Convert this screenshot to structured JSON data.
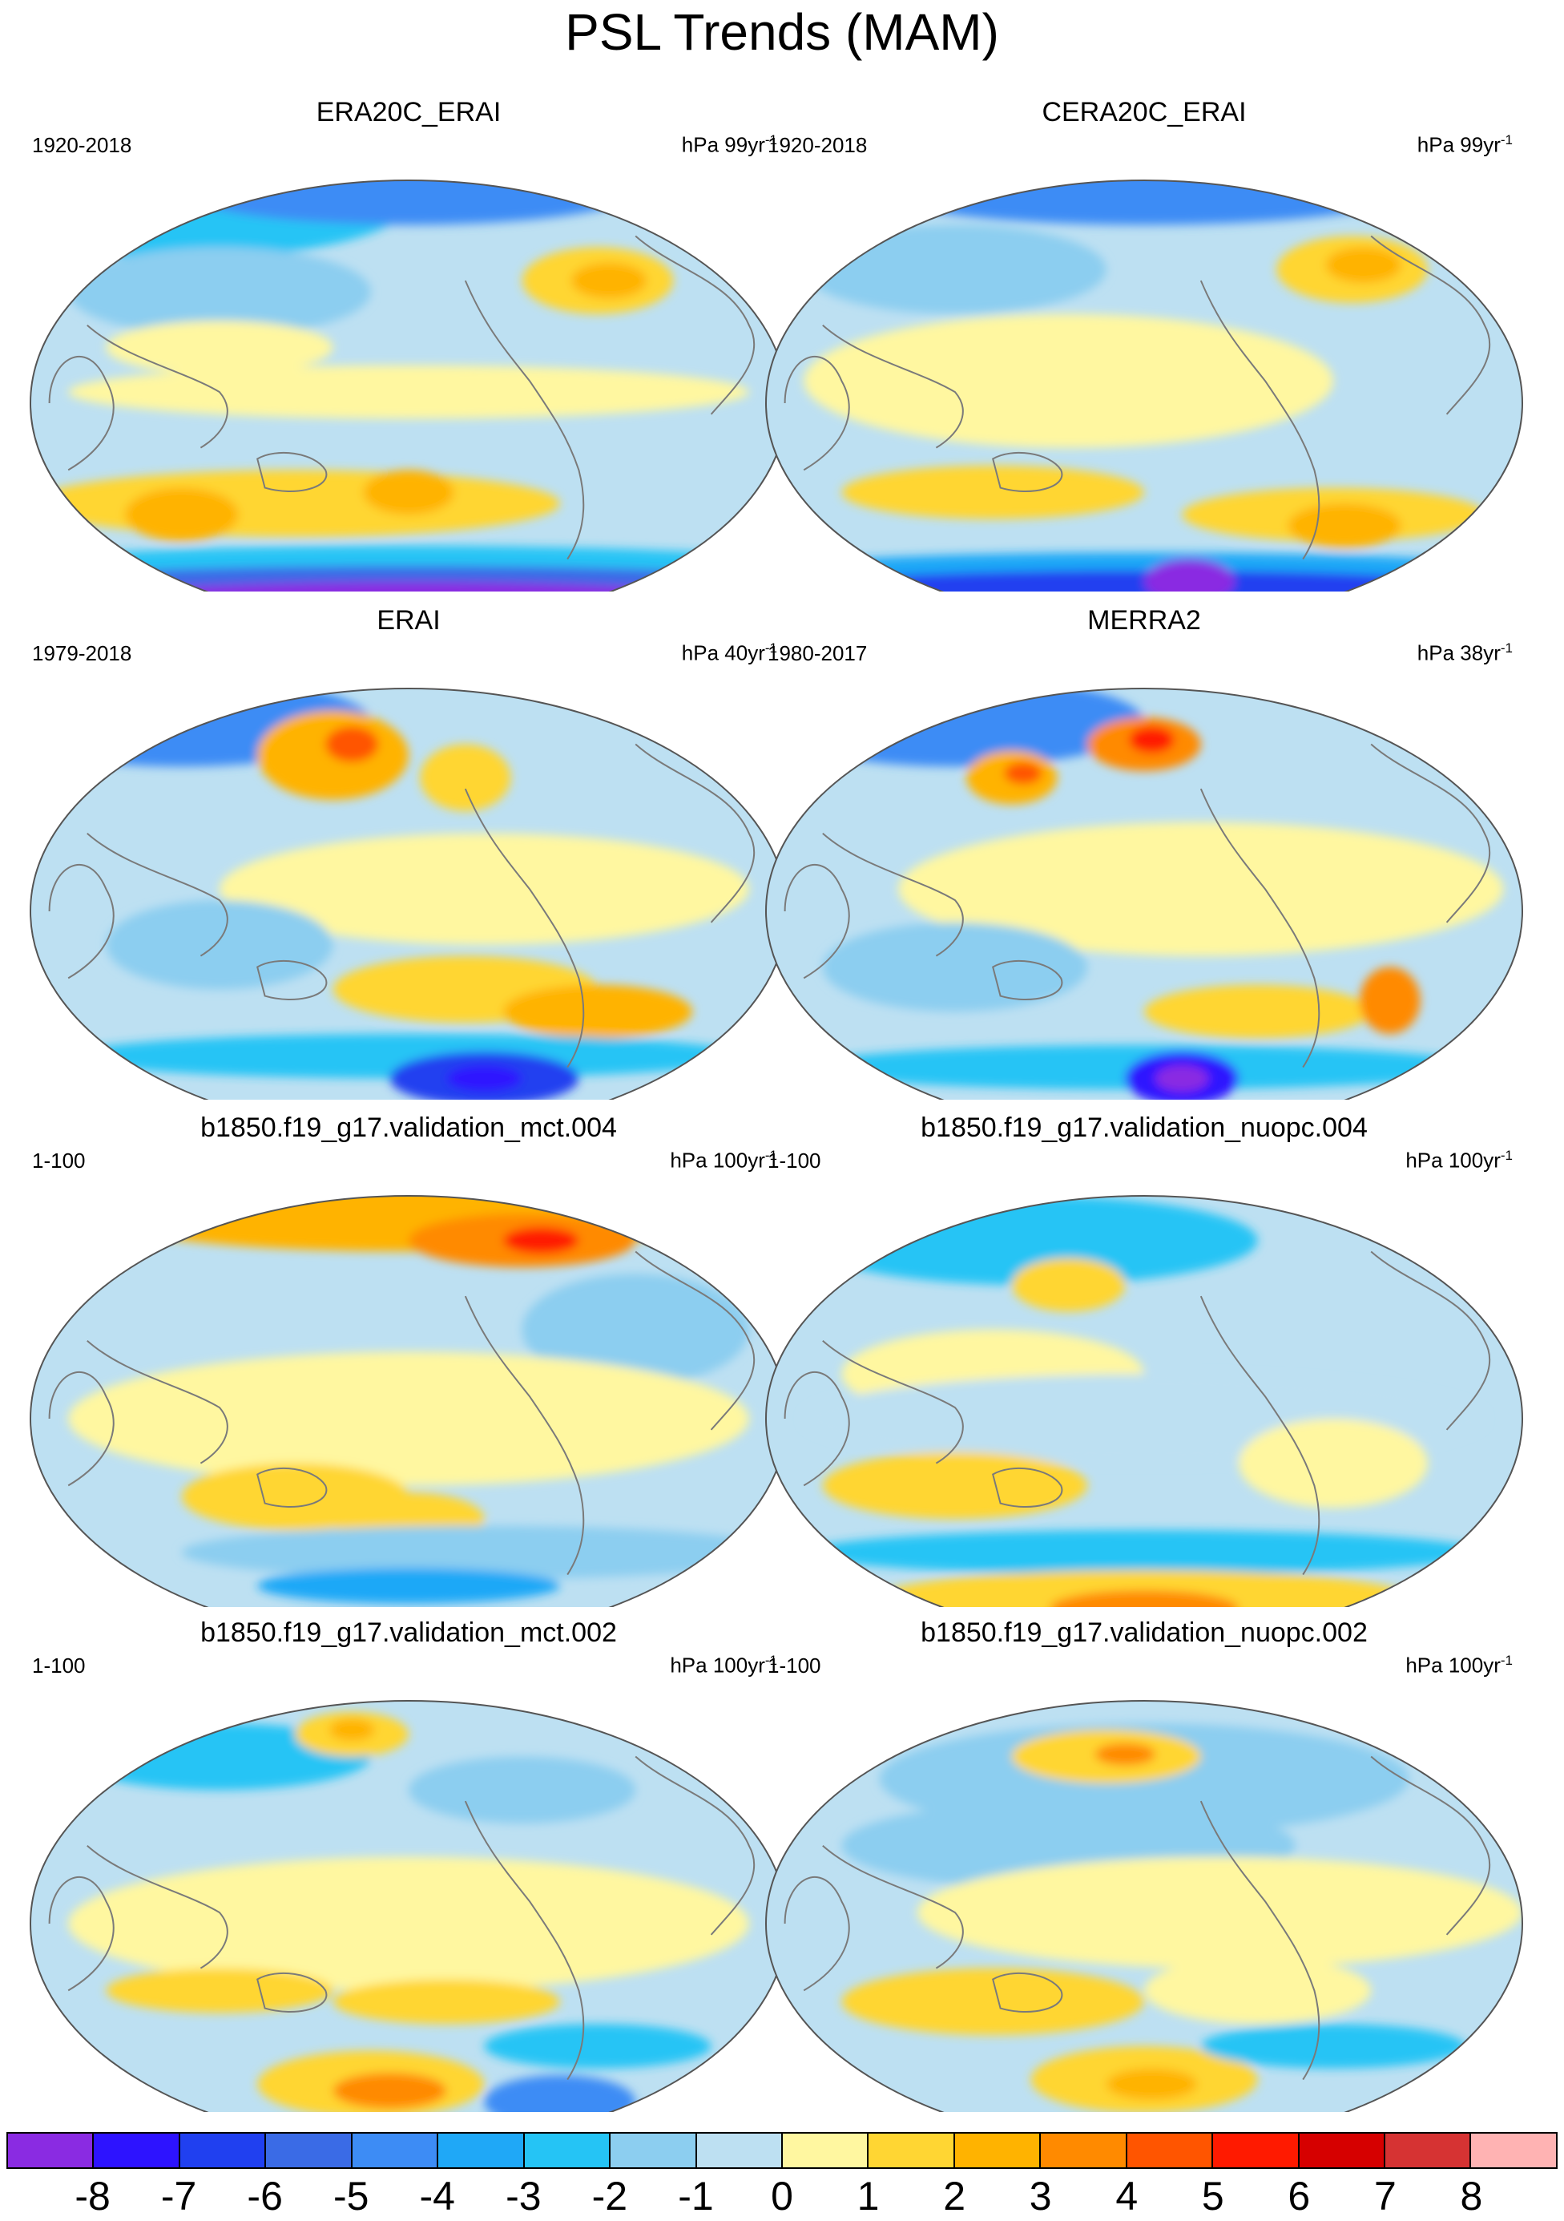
{
  "title": "PSL Trends (MAM)",
  "palette": {
    "ocean_neutral_neg": "#bde0f2",
    "ocean_neutral_pos": "#fff7a0",
    "coast": "#7a7a7a",
    "frame": "#555555"
  },
  "panels": [
    {
      "title": "ERA20C_ERAI",
      "period": "1920-2018",
      "units_prefix": "hPa 99yr",
      "units_exp": "-1"
    },
    {
      "title": "CERA20C_ERAI",
      "period": "1920-2018",
      "units_prefix": "hPa 99yr",
      "units_exp": "-1"
    },
    {
      "title": "ERAI",
      "period": "1979-2018",
      "units_prefix": "hPa 40yr",
      "units_exp": "-1"
    },
    {
      "title": "MERRA2",
      "period": "1980-2017",
      "units_prefix": "hPa 38yr",
      "units_exp": "-1"
    },
    {
      "title": "b1850.f19_g17.validation_mct.004",
      "period": "1-100",
      "units_prefix": "hPa 100yr",
      "units_exp": "-1"
    },
    {
      "title": "b1850.f19_g17.validation_nuopc.004",
      "period": "1-100",
      "units_prefix": "hPa 100yr",
      "units_exp": "-1"
    },
    {
      "title": "b1850.f19_g17.validation_mct.002",
      "period": "1-100",
      "units_prefix": "hPa 100yr",
      "units_exp": "-1"
    },
    {
      "title": "b1850.f19_g17.validation_nuopc.002",
      "period": "1-100",
      "units_prefix": "hPa 100yr",
      "units_exp": "-1"
    }
  ],
  "colorbar": {
    "colors": [
      "#8a2be2",
      "#2d13ff",
      "#2040f0",
      "#3a6be6",
      "#3d8cf5",
      "#1fa8f7",
      "#25c4f5",
      "#8ccef0",
      "#bde0f2",
      "#fff7a0",
      "#ffd633",
      "#ffb300",
      "#ff8a00",
      "#ff5500",
      "#ff1a00",
      "#d60000",
      "#d63333",
      "#ffb3b3"
    ],
    "tick_labels": [
      "-8",
      "-7",
      "-6",
      "-5",
      "-4",
      "-3",
      "-2",
      "-1",
      "0",
      "1",
      "2",
      "3",
      "4",
      "5",
      "6",
      "7",
      "8"
    ]
  }
}
